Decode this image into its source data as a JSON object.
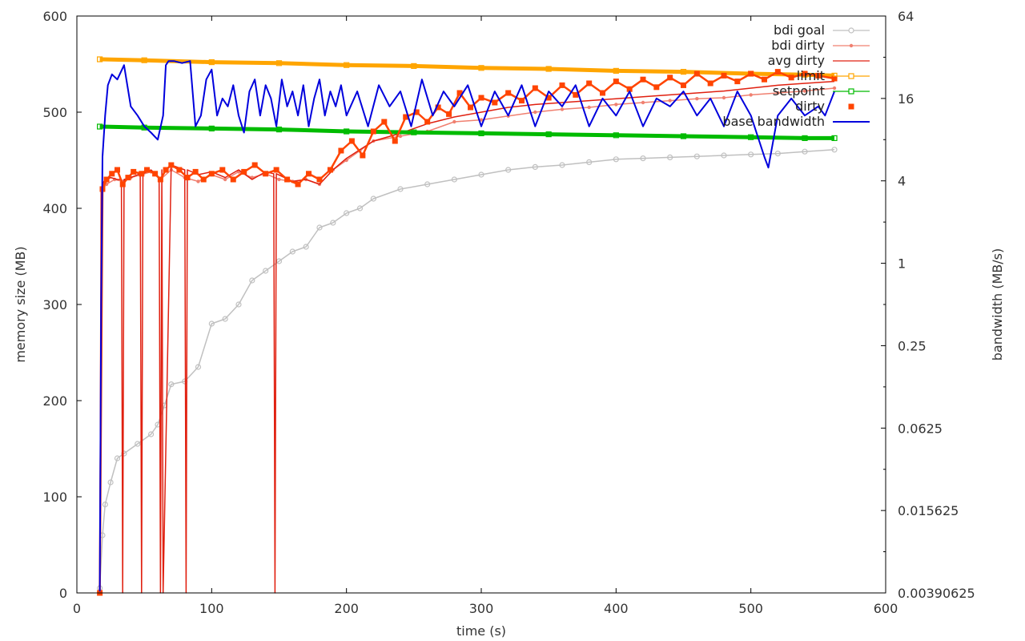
{
  "chart_data": {
    "type": "line",
    "xlabel": "time (s)",
    "ylabel": "memory size (MB)",
    "y2label": "bandwidth (MB/s)",
    "xlim": [
      0,
      600
    ],
    "ylim": [
      0,
      600
    ],
    "y2lim": [
      0.00390625,
      64
    ],
    "y2scale": "log2",
    "grid": false,
    "legend_position": "top-right",
    "x_ticks": [
      "0",
      "100",
      "200",
      "300",
      "400",
      "500",
      "600"
    ],
    "y_ticks": [
      "0",
      "100",
      "200",
      "300",
      "400",
      "500",
      "600"
    ],
    "y2_ticks": [
      "0.00390625",
      "0.015625",
      "0.0625",
      "0.25",
      "1",
      "4",
      "16",
      "64"
    ],
    "series": [
      {
        "name": "bdi goal",
        "axis": "y",
        "color": "#c0c0c0",
        "marker": "circle",
        "x": [
          17,
          19,
          21,
          25,
          30,
          35,
          45,
          55,
          60,
          65,
          70,
          80,
          90,
          100,
          110,
          120,
          130,
          140,
          150,
          160,
          170,
          180,
          190,
          200,
          210,
          220,
          240,
          260,
          280,
          300,
          320,
          340,
          360,
          380,
          400,
          420,
          440,
          460,
          480,
          500,
          520,
          540,
          562
        ],
        "y": [
          5,
          60,
          92,
          115,
          140,
          145,
          155,
          165,
          175,
          195,
          217,
          220,
          235,
          280,
          285,
          300,
          325,
          335,
          345,
          355,
          360,
          380,
          385,
          395,
          400,
          410,
          420,
          425,
          430,
          435,
          440,
          443,
          445,
          448,
          451,
          452,
          453,
          454,
          455,
          456,
          457,
          459,
          461
        ]
      },
      {
        "name": "bdi dirty",
        "axis": "y",
        "color": "#f08070",
        "marker": "dot",
        "x": [
          17,
          19,
          22,
          28,
          34,
          40,
          48,
          55,
          62,
          70,
          80,
          90,
          100,
          110,
          120,
          130,
          140,
          150,
          160,
          170,
          180,
          190,
          200,
          210,
          220,
          240,
          260,
          280,
          300,
          320,
          340,
          360,
          380,
          400,
          420,
          440,
          460,
          480,
          500,
          520,
          540,
          562
        ],
        "y": [
          0,
          420,
          425,
          430,
          428,
          432,
          435,
          438,
          430,
          440,
          432,
          428,
          435,
          430,
          438,
          432,
          436,
          430,
          428,
          430,
          425,
          440,
          450,
          460,
          470,
          475,
          480,
          490,
          492,
          496,
          500,
          503,
          505,
          508,
          510,
          512,
          514,
          515,
          518,
          520,
          522,
          525
        ]
      },
      {
        "name": "avg dirty",
        "axis": "y",
        "color": "#e02010",
        "marker": "none",
        "x": [
          17,
          18,
          20,
          25,
          30,
          33,
          34,
          35,
          40,
          47,
          48,
          49,
          55,
          61,
          62,
          63,
          64,
          70,
          80,
          81,
          82,
          90,
          100,
          110,
          120,
          130,
          140,
          146,
          147,
          148,
          160,
          170,
          180,
          190,
          200,
          220,
          240,
          260,
          280,
          300,
          320,
          340,
          360,
          380,
          400,
          420,
          440,
          460,
          480,
          500,
          520,
          540,
          562
        ],
        "y": [
          0,
          420,
          428,
          432,
          430,
          430,
          0,
          430,
          432,
          436,
          0,
          436,
          440,
          432,
          0,
          440,
          0,
          445,
          440,
          0,
          440,
          435,
          438,
          432,
          440,
          430,
          438,
          436,
          0,
          436,
          428,
          430,
          425,
          440,
          452,
          470,
          478,
          488,
          495,
          500,
          505,
          508,
          510,
          512,
          514,
          516,
          518,
          520,
          522,
          525,
          528,
          530,
          532
        ]
      },
      {
        "name": "limit",
        "axis": "y",
        "color": "#ffa500",
        "marker": "square",
        "x": [
          17,
          50,
          100,
          150,
          200,
          250,
          300,
          350,
          400,
          450,
          500,
          540,
          562
        ],
        "y": [
          555,
          554,
          552,
          551,
          549,
          548,
          546,
          545,
          543,
          542,
          540,
          539,
          538
        ]
      },
      {
        "name": "setpoint",
        "axis": "y",
        "color": "#00bb00",
        "marker": "square",
        "x": [
          17,
          50,
          100,
          150,
          200,
          250,
          300,
          350,
          400,
          450,
          500,
          540,
          562
        ],
        "y": [
          485,
          484,
          483,
          482,
          480,
          479,
          478,
          477,
          476,
          475,
          474,
          473,
          473
        ]
      },
      {
        "name": "dirty",
        "axis": "y",
        "color": "#ff4400",
        "marker": "filled-square",
        "x": [
          17,
          19,
          22,
          26,
          30,
          34,
          38,
          42,
          48,
          52,
          58,
          62,
          66,
          70,
          76,
          82,
          88,
          94,
          100,
          108,
          116,
          124,
          132,
          140,
          148,
          156,
          164,
          172,
          180,
          188,
          196,
          204,
          212,
          220,
          228,
          236,
          244,
          252,
          260,
          268,
          276,
          284,
          292,
          300,
          310,
          320,
          330,
          340,
          350,
          360,
          370,
          380,
          390,
          400,
          410,
          420,
          430,
          440,
          450,
          460,
          470,
          480,
          490,
          500,
          510,
          520,
          530,
          540,
          550,
          562
        ],
        "y": [
          0,
          420,
          430,
          436,
          440,
          425,
          432,
          438,
          436,
          440,
          436,
          430,
          440,
          445,
          440,
          432,
          438,
          430,
          436,
          440,
          430,
          438,
          445,
          436,
          440,
          430,
          425,
          436,
          430,
          440,
          460,
          470,
          455,
          480,
          490,
          470,
          495,
          500,
          490,
          505,
          498,
          520,
          505,
          515,
          510,
          520,
          512,
          525,
          515,
          528,
          518,
          530,
          520,
          532,
          524,
          534,
          526,
          536,
          528,
          540,
          530,
          538,
          532,
          540,
          534,
          542,
          536,
          540,
          538,
          535
        ]
      },
      {
        "name": "base bandwidth",
        "axis": "y2",
        "color": "#0000dd",
        "marker": "none",
        "x": [
          17,
          18,
          19,
          21,
          23,
          26,
          30,
          35,
          40,
          45,
          50,
          55,
          60,
          64,
          66,
          68,
          72,
          78,
          84,
          88,
          92,
          96,
          100,
          104,
          108,
          112,
          116,
          120,
          124,
          128,
          132,
          136,
          140,
          144,
          148,
          152,
          156,
          160,
          164,
          168,
          172,
          176,
          180,
          184,
          188,
          192,
          196,
          200,
          208,
          216,
          224,
          232,
          240,
          248,
          256,
          264,
          272,
          280,
          290,
          300,
          310,
          320,
          330,
          340,
          350,
          360,
          370,
          380,
          390,
          400,
          410,
          420,
          430,
          440,
          450,
          460,
          470,
          480,
          490,
          500,
          510,
          513,
          520,
          530,
          540,
          550,
          555,
          562
        ],
        "y": [
          0.004,
          0.5,
          6,
          12,
          20,
          24,
          22,
          28,
          14,
          12,
          10,
          9,
          8,
          12,
          28,
          30,
          30,
          29,
          30,
          10,
          12,
          22,
          26,
          12,
          16,
          14,
          20,
          12,
          9,
          18,
          22,
          12,
          20,
          16,
          10,
          22,
          14,
          18,
          12,
          20,
          10,
          16,
          22,
          12,
          18,
          14,
          20,
          12,
          18,
          10,
          20,
          14,
          18,
          10,
          22,
          12,
          18,
          14,
          20,
          10,
          18,
          12,
          20,
          10,
          18,
          14,
          20,
          10,
          16,
          12,
          18,
          10,
          16,
          14,
          18,
          12,
          16,
          10,
          18,
          12,
          6,
          5,
          12,
          16,
          12,
          14,
          12,
          18
        ]
      }
    ]
  }
}
